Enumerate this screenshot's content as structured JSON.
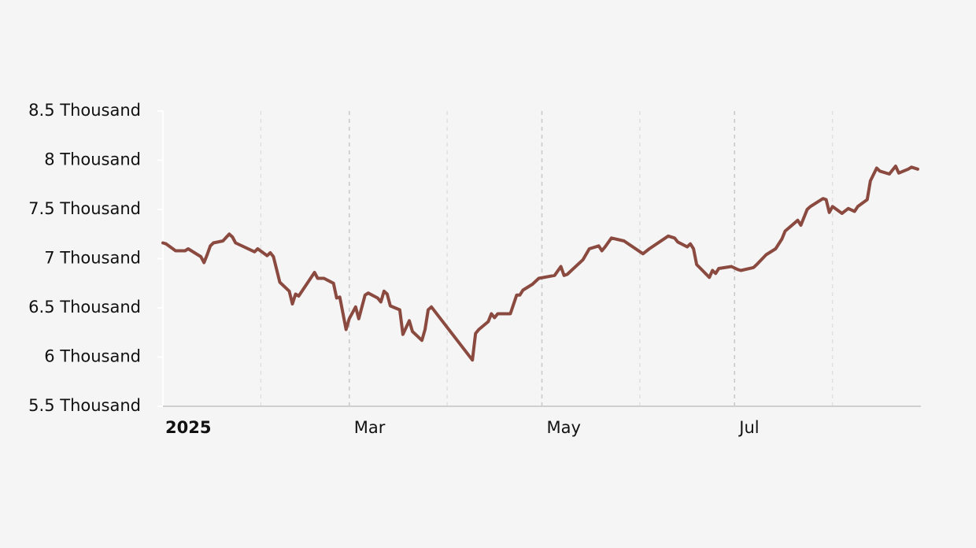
{
  "chart_data": {
    "type": "line",
    "x": [
      "2025-01-01",
      "2025-01-02",
      "2025-01-05",
      "2025-01-08",
      "2025-01-09",
      "2025-01-13",
      "2025-01-14",
      "2025-01-15",
      "2025-01-16",
      "2025-01-17",
      "2025-01-20",
      "2025-01-22",
      "2025-01-23",
      "2025-01-24",
      "2025-01-30",
      "2025-01-31",
      "2025-02-03",
      "2025-02-04",
      "2025-02-05",
      "2025-02-07",
      "2025-02-10",
      "2025-02-11",
      "2025-02-12",
      "2025-02-13",
      "2025-02-18",
      "2025-02-19",
      "2025-02-21",
      "2025-02-24",
      "2025-02-25",
      "2025-02-26",
      "2025-02-28",
      "2025-03-01",
      "2025-03-03",
      "2025-03-04",
      "2025-03-06",
      "2025-03-07",
      "2025-03-10",
      "2025-03-11",
      "2025-03-12",
      "2025-03-13",
      "2025-03-14",
      "2025-03-17",
      "2025-03-18",
      "2025-03-20",
      "2025-03-21",
      "2025-03-24",
      "2025-03-25",
      "2025-03-26",
      "2025-03-27",
      "2025-04-09",
      "2025-04-10",
      "2025-04-11",
      "2025-04-14",
      "2025-04-15",
      "2025-04-16",
      "2025-04-17",
      "2025-04-21",
      "2025-04-23",
      "2025-04-24",
      "2025-04-25",
      "2025-04-28",
      "2025-04-30",
      "2025-05-05",
      "2025-05-07",
      "2025-05-08",
      "2025-05-09",
      "2025-05-14",
      "2025-05-16",
      "2025-05-19",
      "2025-05-20",
      "2025-05-21",
      "2025-05-23",
      "2025-05-27",
      "2025-06-02",
      "2025-06-04",
      "2025-06-10",
      "2025-06-12",
      "2025-06-13",
      "2025-06-16",
      "2025-06-17",
      "2025-06-18",
      "2025-06-19",
      "2025-06-23",
      "2025-06-24",
      "2025-06-25",
      "2025-06-26",
      "2025-06-30",
      "2025-07-02",
      "2025-07-03",
      "2025-07-07",
      "2025-07-08",
      "2025-07-11",
      "2025-07-14",
      "2025-07-16",
      "2025-07-17",
      "2025-07-21",
      "2025-07-22",
      "2025-07-24",
      "2025-07-25",
      "2025-07-29",
      "2025-07-30",
      "2025-07-31",
      "2025-08-01",
      "2025-08-04",
      "2025-08-06",
      "2025-08-08",
      "2025-08-09",
      "2025-08-12",
      "2025-08-13",
      "2025-08-15",
      "2025-08-16",
      "2025-08-19",
      "2025-08-21",
      "2025-08-22",
      "2025-08-25",
      "2025-08-26",
      "2025-08-28"
    ],
    "series": [
      {
        "color": "#8b4a40",
        "values": [
          7.16,
          7.15,
          7.08,
          7.08,
          7.1,
          7.02,
          6.96,
          7.04,
          7.13,
          7.16,
          7.18,
          7.25,
          7.22,
          7.16,
          7.07,
          7.1,
          7.03,
          7.06,
          7.02,
          6.76,
          6.67,
          6.54,
          6.64,
          6.62,
          6.86,
          6.8,
          6.8,
          6.75,
          6.6,
          6.61,
          6.28,
          6.39,
          6.51,
          6.39,
          6.63,
          6.65,
          6.6,
          6.56,
          6.67,
          6.64,
          6.52,
          6.48,
          6.23,
          6.37,
          6.26,
          6.17,
          6.28,
          6.48,
          6.51,
          5.97,
          6.24,
          6.28,
          6.36,
          6.44,
          6.4,
          6.44,
          6.44,
          6.63,
          6.63,
          6.68,
          6.74,
          6.8,
          6.83,
          6.92,
          6.83,
          6.84,
          6.99,
          7.1,
          7.13,
          7.08,
          7.12,
          7.21,
          7.18,
          7.05,
          7.1,
          7.23,
          7.21,
          7.17,
          7.12,
          7.15,
          7.1,
          6.94,
          6.81,
          6.88,
          6.85,
          6.9,
          6.92,
          6.89,
          6.88,
          6.91,
          6.94,
          7.04,
          7.1,
          7.2,
          7.28,
          7.39,
          7.34,
          7.5,
          7.53,
          7.61,
          7.6,
          7.47,
          7.53,
          7.46,
          7.51,
          7.48,
          7.53,
          7.6,
          7.79,
          7.92,
          7.89,
          7.86,
          7.94,
          7.87,
          7.91,
          7.93,
          7.91
        ]
      }
    ],
    "xlim": [
      "2025-01-01",
      "2025-08-29"
    ],
    "xticks": [
      {
        "value": "2025-01-01",
        "label": "2025"
      },
      {
        "value": "2025-03-01",
        "label": "Mar"
      },
      {
        "value": "2025-05-01",
        "label": "May"
      },
      {
        "value": "2025-07-01",
        "label": "Jul"
      }
    ],
    "xminorticks": [
      "2025-02-01",
      "2025-04-01",
      "2025-06-01",
      "2025-08-01"
    ],
    "ylim": [
      5.5,
      8.5
    ],
    "yticks": [
      {
        "value": 5.5,
        "label": "5.5 Thousand"
      },
      {
        "value": 6,
        "label": "6 Thousand"
      },
      {
        "value": 6.5,
        "label": "6.5 Thousand"
      },
      {
        "value": 7,
        "label": "7 Thousand"
      },
      {
        "value": 7.5,
        "label": "7.5 Thousand"
      },
      {
        "value": 8,
        "label": "8 Thousand"
      },
      {
        "value": 8.5,
        "label": "8.5 Thousand"
      }
    ],
    "grid": true
  }
}
